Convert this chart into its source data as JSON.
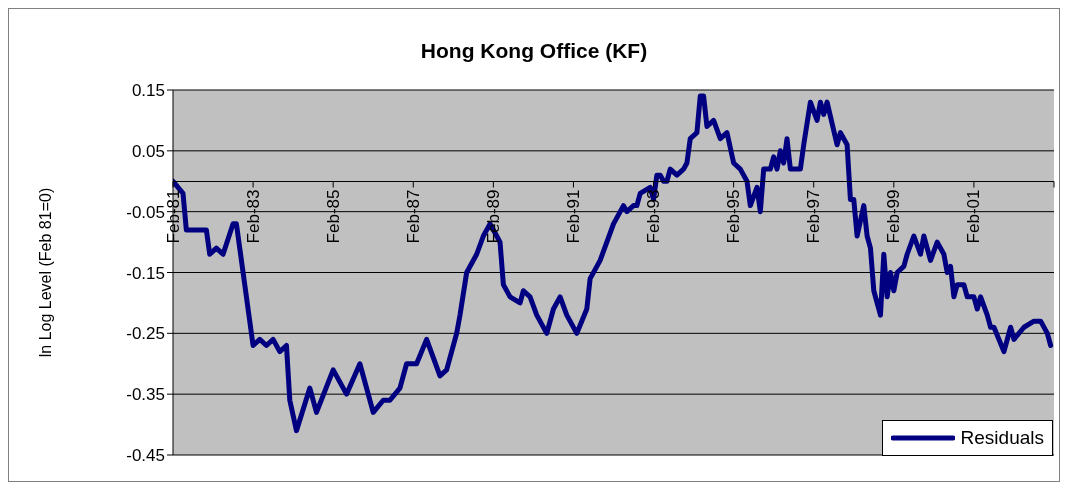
{
  "chart_data": {
    "type": "line",
    "title": "Hong Kong Office (KF)",
    "ylabel": "ln Log Level (Feb 81=0)",
    "xlim": [
      "1981-02",
      "2003-02"
    ],
    "xticks": [
      {
        "value": "1981-02",
        "label": "Feb-81"
      },
      {
        "value": "1983-02",
        "label": "Feb-83"
      },
      {
        "value": "1985-02",
        "label": "Feb-85"
      },
      {
        "value": "1987-02",
        "label": "Feb-87"
      },
      {
        "value": "1989-02",
        "label": "Feb-89"
      },
      {
        "value": "1991-02",
        "label": "Feb-91"
      },
      {
        "value": "1993-02",
        "label": "Feb-93"
      },
      {
        "value": "1995-02",
        "label": "Feb-95"
      },
      {
        "value": "1997-02",
        "label": "Feb-97"
      },
      {
        "value": "1999-02",
        "label": "Feb-99"
      },
      {
        "value": "2001-02",
        "label": "Feb-01"
      },
      {
        "value": "2003-02",
        "label": null
      }
    ],
    "ylim": [
      -0.45,
      0.15
    ],
    "yticks": [
      -0.45,
      -0.35,
      -0.25,
      -0.15,
      -0.05,
      0.05,
      0.15
    ],
    "grid": "y",
    "legend": "bottom right",
    "x": [
      "1981-02",
      "1981-05",
      "1981-06",
      "1981-09",
      "1981-11",
      "1981-12",
      "1982-01",
      "1982-03",
      "1982-05",
      "1982-08",
      "1982-09",
      "1982-11",
      "1983-02",
      "1983-04",
      "1983-06",
      "1983-08",
      "1983-10",
      "1983-12",
      "1984-01",
      "1984-03",
      "1984-07",
      "1984-09",
      "1985-02",
      "1985-06",
      "1985-10",
      "1986-02",
      "1986-05",
      "1986-07",
      "1986-10",
      "1986-12",
      "1987-03",
      "1987-06",
      "1987-10",
      "1987-12",
      "1988-03",
      "1988-04",
      "1988-06",
      "1988-09",
      "1988-11",
      "1989-01",
      "1989-03",
      "1989-04",
      "1989-05",
      "1989-07",
      "1989-10",
      "1989-11",
      "1990-01",
      "1990-03",
      "1990-06",
      "1990-08",
      "1990-10",
      "1990-12",
      "1991-03",
      "1991-06",
      "1991-07",
      "1991-10",
      "1991-12",
      "1992-02",
      "1992-05",
      "1992-06",
      "1992-08",
      "1992-09",
      "1992-10",
      "1993-01",
      "1993-02",
      "1993-03",
      "1993-04",
      "1993-05",
      "1993-06",
      "1993-07",
      "1993-09",
      "1993-11",
      "1993-12",
      "1994-01",
      "1994-03",
      "1994-04",
      "1994-05",
      "1994-06",
      "1994-08",
      "1994-10",
      "1994-12",
      "1995-02",
      "1995-04",
      "1995-06",
      "1995-07",
      "1995-09",
      "1995-10",
      "1995-11",
      "1996-01",
      "1996-02",
      "1996-03",
      "1996-04",
      "1996-05",
      "1996-06",
      "1996-07",
      "1996-10",
      "1996-11",
      "1997-01",
      "1997-03",
      "1997-04",
      "1997-05",
      "1997-06",
      "1997-09",
      "1997-10",
      "1997-12",
      "1998-01",
      "1998-02",
      "1998-03",
      "1998-05",
      "1998-06",
      "1998-07",
      "1998-08",
      "1998-10",
      "1998-11",
      "1998-12",
      "1999-01",
      "1999-02",
      "1999-03",
      "1999-05",
      "1999-06",
      "1999-08",
      "1999-10",
      "1999-11",
      "2000-01",
      "2000-03",
      "2000-05",
      "2000-06",
      "2000-07",
      "2000-08",
      "2000-09",
      "2000-11",
      "2000-12",
      "2001-02",
      "2001-03",
      "2001-04",
      "2001-06",
      "2001-07",
      "2001-08",
      "2001-11",
      "2002-01",
      "2002-02",
      "2002-05",
      "2002-08",
      "2002-10",
      "2002-12",
      "2003-01"
    ],
    "series": [
      {
        "name": "Residuals",
        "color": "#000080",
        "values": [
          0.0,
          -0.02,
          -0.08,
          -0.08,
          -0.08,
          -0.08,
          -0.12,
          -0.11,
          -0.12,
          -0.07,
          -0.07,
          -0.15,
          -0.27,
          -0.26,
          -0.27,
          -0.26,
          -0.28,
          -0.27,
          -0.36,
          -0.41,
          -0.34,
          -0.38,
          -0.31,
          -0.35,
          -0.3,
          -0.38,
          -0.36,
          -0.36,
          -0.34,
          -0.3,
          -0.3,
          -0.26,
          -0.32,
          -0.31,
          -0.25,
          -0.22,
          -0.15,
          -0.12,
          -0.09,
          -0.07,
          -0.09,
          -0.1,
          -0.17,
          -0.19,
          -0.2,
          -0.18,
          -0.19,
          -0.22,
          -0.25,
          -0.21,
          -0.19,
          -0.22,
          -0.25,
          -0.21,
          -0.16,
          -0.13,
          -0.1,
          -0.07,
          -0.04,
          -0.05,
          -0.04,
          -0.04,
          -0.02,
          -0.01,
          -0.03,
          0.01,
          0.01,
          0.0,
          0.0,
          0.02,
          0.01,
          0.02,
          0.03,
          0.07,
          0.08,
          0.14,
          0.14,
          0.09,
          0.1,
          0.07,
          0.08,
          0.03,
          0.02,
          0.0,
          -0.04,
          -0.01,
          -0.05,
          0.02,
          0.02,
          0.04,
          0.02,
          0.05,
          0.03,
          0.07,
          0.02,
          0.02,
          0.06,
          0.13,
          0.1,
          0.13,
          0.11,
          0.13,
          0.06,
          0.08,
          0.06,
          -0.03,
          -0.03,
          -0.09,
          -0.04,
          -0.09,
          -0.11,
          -0.18,
          -0.22,
          -0.12,
          -0.19,
          -0.15,
          -0.18,
          -0.15,
          -0.14,
          -0.12,
          -0.09,
          -0.12,
          -0.09,
          -0.13,
          -0.1,
          -0.12,
          -0.15,
          -0.14,
          -0.19,
          -0.17,
          -0.17,
          -0.19,
          -0.19,
          -0.21,
          -0.19,
          -0.22,
          -0.24,
          -0.24,
          -0.28,
          -0.24,
          -0.26,
          -0.24,
          -0.23,
          -0.23,
          -0.25,
          -0.27
        ]
      }
    ]
  }
}
